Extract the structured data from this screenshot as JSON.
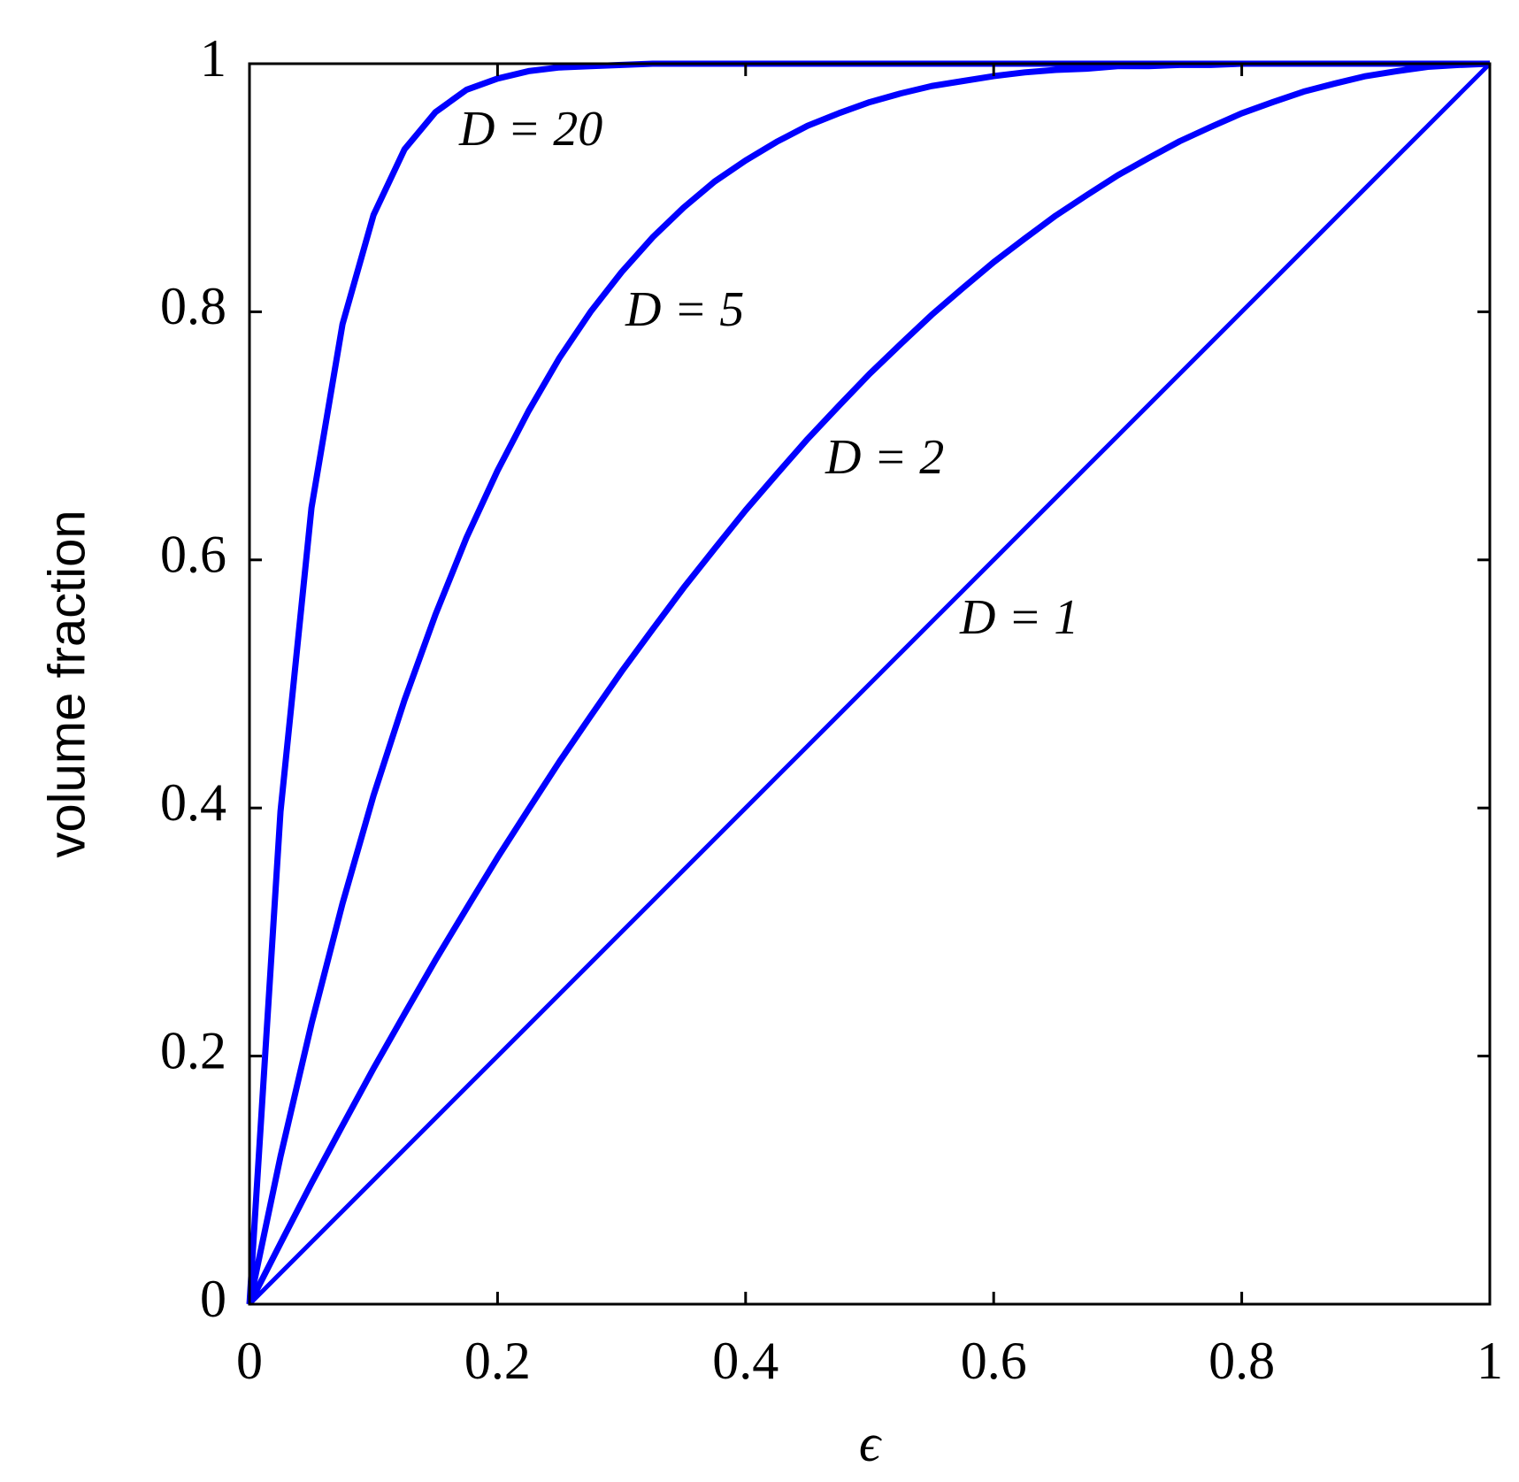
{
  "chart_data": {
    "type": "line",
    "xlabel": "ϵ",
    "ylabel": "volume fraction",
    "x": [
      0,
      0.025,
      0.05,
      0.075,
      0.1,
      0.125,
      0.15,
      0.175,
      0.2,
      0.225,
      0.25,
      0.275,
      0.3,
      0.325,
      0.35,
      0.375,
      0.4,
      0.425,
      0.45,
      0.475,
      0.5,
      0.525,
      0.55,
      0.575,
      0.6,
      0.625,
      0.65,
      0.675,
      0.7,
      0.725,
      0.75,
      0.775,
      0.8,
      0.825,
      0.85,
      0.875,
      0.9,
      0.925,
      0.95,
      0.975,
      1
    ],
    "series": [
      {
        "name": "D = 1",
        "color": "#0000ff",
        "values": [
          0,
          0.025,
          0.05,
          0.075,
          0.1,
          0.125,
          0.15,
          0.175,
          0.2,
          0.225,
          0.25,
          0.275,
          0.3,
          0.325,
          0.35,
          0.375,
          0.4,
          0.425,
          0.45,
          0.475,
          0.5,
          0.525,
          0.55,
          0.575,
          0.6,
          0.625,
          0.65,
          0.675,
          0.7,
          0.725,
          0.75,
          0.775,
          0.8,
          0.825,
          0.85,
          0.875,
          0.9,
          0.925,
          0.95,
          0.975,
          1
        ]
      },
      {
        "name": "D = 2",
        "color": "#0000ff",
        "values": [
          0,
          0.049,
          0.0975,
          0.144,
          0.19,
          0.234,
          0.2775,
          0.319,
          0.36,
          0.399,
          0.4375,
          0.474,
          0.51,
          0.544,
          0.5775,
          0.609,
          0.64,
          0.669,
          0.6975,
          0.724,
          0.75,
          0.774,
          0.7975,
          0.819,
          0.84,
          0.859,
          0.8775,
          0.894,
          0.91,
          0.924,
          0.9375,
          0.949,
          0.96,
          0.969,
          0.9775,
          0.984,
          0.99,
          0.994,
          0.9975,
          0.999,
          1
        ]
      },
      {
        "name": "D = 5",
        "color": "#0000ff",
        "values": [
          0,
          0.119,
          0.226,
          0.323,
          0.41,
          0.487,
          0.556,
          0.618,
          0.672,
          0.72,
          0.763,
          0.8,
          0.832,
          0.86,
          0.884,
          0.905,
          0.922,
          0.937,
          0.95,
          0.96,
          0.969,
          0.976,
          0.982,
          0.986,
          0.99,
          0.993,
          0.995,
          0.996,
          0.998,
          0.998,
          0.999,
          0.999,
          1,
          1,
          1,
          1,
          1,
          1,
          1,
          1,
          1
        ]
      },
      {
        "name": "D = 20",
        "color": "#0000ff",
        "values": [
          0,
          0.397,
          0.642,
          0.79,
          0.878,
          0.931,
          0.961,
          0.979,
          0.988,
          0.994,
          0.997,
          0.998,
          0.999,
          1,
          1,
          1,
          1,
          1,
          1,
          1,
          1,
          1,
          1,
          1,
          1,
          1,
          1,
          1,
          1,
          1,
          1,
          1,
          1,
          1,
          1,
          1,
          1,
          1,
          1,
          1,
          1
        ]
      }
    ],
    "xlim": [
      0,
      1
    ],
    "ylim": [
      0,
      1
    ],
    "xticks": [
      0,
      0.2,
      0.4,
      0.6,
      0.8,
      1
    ],
    "yticks": [
      0,
      0.2,
      0.4,
      0.6,
      0.8,
      1
    ],
    "grid": false
  }
}
